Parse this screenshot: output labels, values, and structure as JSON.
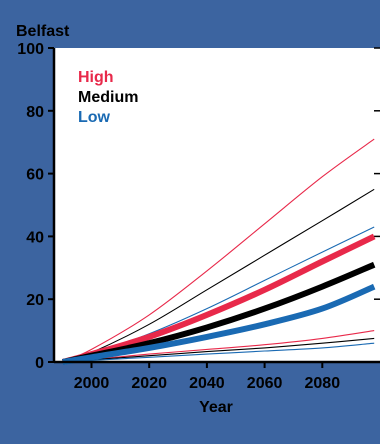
{
  "chart_data": {
    "type": "line",
    "title": "Belfast",
    "xlabel": "Year",
    "ylabel": "",
    "xlim": [
      1987,
      2100
    ],
    "ylim": [
      0,
      100
    ],
    "xticks": [
      2000,
      2020,
      2040,
      2060,
      2080
    ],
    "yticks": [
      0,
      20,
      40,
      60,
      80,
      100
    ],
    "legend": {
      "placement": "top-left",
      "entries": [
        {
          "label": "High",
          "color": "#e8294a"
        },
        {
          "label": "Medium",
          "color": "#000000"
        },
        {
          "label": "Low",
          "color": "#1a6ab3"
        }
      ]
    },
    "series": [
      {
        "group": "High",
        "band": "upper",
        "color": "#e8294a",
        "x": [
          1990,
          2000,
          2020,
          2040,
          2060,
          2080,
          2098
        ],
        "values": [
          0,
          4,
          15,
          29,
          44,
          59,
          71
        ]
      },
      {
        "group": "Medium",
        "band": "upper",
        "color": "#000000",
        "x": [
          1990,
          2000,
          2020,
          2040,
          2060,
          2080,
          2098
        ],
        "values": [
          0,
          3,
          12,
          23,
          34,
          45,
          55
        ]
      },
      {
        "group": "Low",
        "band": "upper",
        "color": "#1a6ab3",
        "x": [
          1990,
          2000,
          2020,
          2040,
          2060,
          2080,
          2098
        ],
        "values": [
          0,
          2.5,
          9,
          17,
          26,
          35,
          43
        ]
      },
      {
        "group": "High",
        "band": "central",
        "color": "#e8294a",
        "x": [
          1990,
          2000,
          2020,
          2040,
          2060,
          2080,
          2098
        ],
        "values": [
          0,
          2.5,
          8,
          15,
          23,
          32,
          40
        ]
      },
      {
        "group": "Medium",
        "band": "central",
        "color": "#000000",
        "x": [
          1990,
          2000,
          2020,
          2040,
          2060,
          2080,
          2098
        ],
        "values": [
          0,
          2,
          6,
          11,
          17,
          24,
          31
        ]
      },
      {
        "group": "Low",
        "band": "central",
        "color": "#1a6ab3",
        "x": [
          1990,
          2000,
          2020,
          2040,
          2060,
          2080,
          2098
        ],
        "values": [
          0,
          1.5,
          4.5,
          8,
          12,
          17,
          24
        ]
      },
      {
        "group": "High",
        "band": "lower",
        "color": "#e8294a",
        "x": [
          1990,
          2000,
          2020,
          2040,
          2060,
          2080,
          2098
        ],
        "values": [
          0,
          0.8,
          2.5,
          4,
          5.5,
          7.5,
          10
        ]
      },
      {
        "group": "Medium",
        "band": "lower",
        "color": "#000000",
        "x": [
          1990,
          2000,
          2020,
          2040,
          2060,
          2080,
          2098
        ],
        "values": [
          0,
          0.7,
          2,
          3.3,
          4.5,
          6,
          7.5
        ]
      },
      {
        "group": "Low",
        "band": "lower",
        "color": "#1a6ab3",
        "x": [
          1990,
          2000,
          2020,
          2040,
          2060,
          2080,
          2098
        ],
        "values": [
          0,
          0.5,
          1.5,
          2.5,
          3.5,
          4.5,
          6
        ]
      }
    ]
  }
}
